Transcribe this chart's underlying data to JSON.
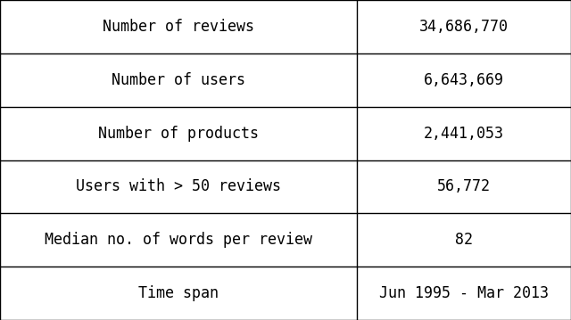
{
  "rows": [
    [
      "Number of reviews",
      "34,686,770"
    ],
    [
      "Number of users",
      "6,643,669"
    ],
    [
      "Number of products",
      "2,441,053"
    ],
    [
      "Users with > 50 reviews",
      "56,772"
    ],
    [
      "Median no. of words per review",
      "82"
    ],
    [
      "Time span",
      "Jun 1995 - Mar 2013"
    ]
  ],
  "col_split": 0.5,
  "background_color": "#ffffff",
  "line_color": "#000000",
  "text_color": "#000000",
  "font_size": 12,
  "fig_width": 6.4,
  "fig_height": 3.59
}
